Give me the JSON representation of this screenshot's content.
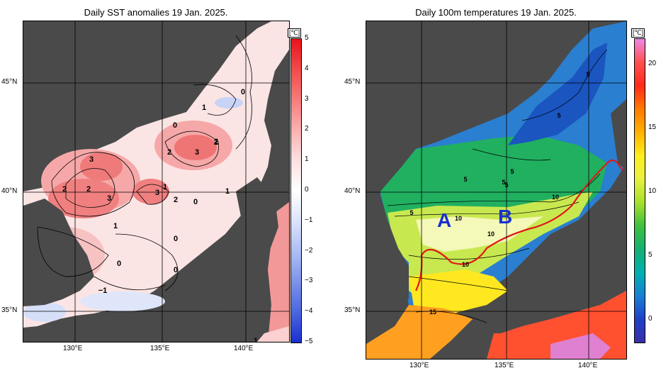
{
  "left_panel": {
    "title": "Daily SST anomalies 19 Jan. 2025.",
    "unit": "[℃]",
    "colorbar_ticks": [
      "5",
      "4",
      "3",
      "2",
      "1",
      "0",
      "−1",
      "−2",
      "−3",
      "−4",
      "−5"
    ],
    "colorbar_colors": [
      "#e8141c",
      "#f24a4a",
      "#f77b7b",
      "#fbb0b0",
      "#fde0e0",
      "#ffffff",
      "#dce4fb",
      "#aebef4",
      "#7d92ea",
      "#4c66de",
      "#1a2fcf"
    ],
    "lat_ticks": [
      "45°N",
      "40°N",
      "35°N"
    ],
    "lon_ticks": [
      "130°E",
      "135°E",
      "140°E"
    ],
    "contour_labels": [
      "0",
      "1",
      "2",
      "3",
      "3",
      "2",
      "2",
      "3",
      "3",
      "2",
      "1",
      "2",
      "0",
      "1",
      "0",
      "0",
      "0",
      "0",
      "−1",
      "1",
      "1",
      "2"
    ]
  },
  "right_panel": {
    "title": "Daily 100m temperatures 19 Jan. 2025.",
    "unit": "[℃]",
    "colorbar_ticks": [
      "20",
      "15",
      "10",
      "5",
      "0"
    ],
    "colorbar_colors": [
      "#ee88e8",
      "#ff5050",
      "#ff2a1a",
      "#ff7b00",
      "#ffb000",
      "#ffee20",
      "#e8f040",
      "#a6e02a",
      "#40c040",
      "#14b070",
      "#00b0b0",
      "#1a7fd4",
      "#2040c8",
      "#3a2fa8"
    ],
    "lat_ticks": [
      "45°N",
      "40°N",
      "35°N"
    ],
    "lon_ticks": [
      "130°E",
      "135°E",
      "140°E"
    ],
    "contour_labels": [
      "5",
      "5",
      "5",
      "5",
      "5",
      "5",
      "5",
      "10",
      "10",
      "10",
      "10",
      "15"
    ],
    "region_labels": [
      "A",
      "B"
    ]
  }
}
